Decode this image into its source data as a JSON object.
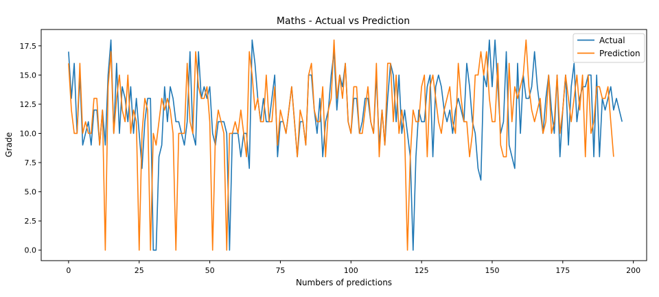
{
  "chart_data": {
    "type": "line",
    "title": "Maths - Actual vs Prediction",
    "xlabel": "Numbers of predictions",
    "ylabel": "Grade",
    "xlim": [
      -9.7,
      204.7
    ],
    "ylim": [
      -0.9,
      18.9
    ],
    "xticks": [
      0,
      25,
      50,
      75,
      100,
      125,
      150,
      175,
      200
    ],
    "yticks": [
      0.0,
      2.5,
      5.0,
      7.5,
      10.0,
      12.5,
      15.0,
      17.5
    ],
    "ytick_labels": [
      "0.0",
      "2.5",
      "5.0",
      "7.5",
      "10.0",
      "12.5",
      "15.0",
      "17.5"
    ],
    "grid": false,
    "legend_position": "upper right",
    "series": [
      {
        "name": "Actual",
        "color": "#1f77b4",
        "values": [
          17,
          13,
          16,
          10,
          15,
          9,
          10,
          11,
          9,
          12,
          12,
          9,
          12,
          9,
          15,
          18,
          10,
          16,
          10,
          14,
          13,
          11,
          14,
          10,
          13,
          10,
          7,
          11,
          13,
          13,
          0,
          0,
          8,
          9,
          14,
          11,
          14,
          13,
          11,
          11,
          10,
          9,
          11,
          17,
          10,
          9,
          17,
          13,
          14,
          13,
          14,
          10,
          9,
          11,
          11,
          11,
          10,
          0,
          10,
          10,
          10,
          8,
          10,
          10,
          7,
          18,
          16,
          13,
          11,
          13,
          11,
          11,
          13,
          15,
          8,
          11,
          11,
          10,
          12,
          14,
          11,
          8,
          11,
          11,
          9,
          15,
          15,
          12,
          10,
          13,
          8,
          11,
          12,
          15,
          17,
          12,
          15,
          14,
          16,
          11,
          10,
          13,
          13,
          10,
          11,
          13,
          13,
          11,
          10,
          15,
          9,
          12,
          9,
          13,
          16,
          15,
          11,
          15,
          10,
          12,
          10,
          8,
          0,
          8,
          12,
          11,
          11,
          14,
          15,
          8,
          14,
          15,
          14,
          12,
          11,
          12,
          10,
          12,
          13,
          12,
          11,
          16,
          14,
          11,
          10,
          7,
          6,
          15,
          14,
          18,
          14,
          18,
          14,
          10,
          11,
          17,
          9,
          8,
          7,
          16,
          10,
          15,
          13,
          13,
          14,
          17,
          14,
          12,
          10,
          13,
          15,
          12,
          10,
          15,
          8,
          12,
          15,
          9,
          14,
          16,
          11,
          13,
          14,
          14,
          15,
          15,
          8,
          15,
          8,
          13,
          12,
          13,
          14,
          12,
          13,
          12,
          11
        ],
        "note_tail_values_estimated": true
      },
      {
        "name": "Prediction",
        "color": "#ff7f0e",
        "values": [
          16,
          12,
          10,
          10,
          16,
          10,
          11,
          10,
          10,
          13,
          13,
          9,
          12,
          0,
          14,
          17,
          10,
          13,
          15,
          12,
          11,
          15,
          10,
          12,
          11,
          0,
          10,
          13,
          12,
          0,
          10,
          9,
          11,
          13,
          12,
          13,
          12,
          10,
          0,
          10,
          10,
          10,
          16,
          11,
          10,
          17,
          14,
          13,
          13,
          14,
          11,
          0,
          10,
          12,
          11,
          10,
          0,
          10,
          10,
          11,
          10,
          12,
          10,
          8,
          17,
          15,
          12,
          13,
          11,
          11,
          15,
          11,
          11,
          14,
          9,
          12,
          11,
          10,
          12,
          14,
          11,
          8,
          12,
          11,
          9,
          15,
          16,
          12,
          11,
          11,
          14,
          8,
          12,
          13,
          18,
          13,
          15,
          13,
          16,
          11,
          10,
          14,
          14,
          10,
          10,
          12,
          14,
          11,
          10,
          16,
          8,
          12,
          9,
          16,
          16,
          11,
          15,
          10,
          12,
          10,
          0,
          8,
          12,
          11,
          11,
          14,
          15,
          8,
          14,
          15,
          13,
          11,
          10,
          12,
          13,
          14,
          11,
          10,
          16,
          13,
          11,
          11,
          8,
          10,
          15,
          15,
          17,
          15,
          17,
          13,
          11,
          11,
          16,
          9,
          8,
          8,
          16,
          11,
          14,
          13,
          14,
          15,
          18,
          14,
          12,
          11,
          12,
          13,
          10,
          11,
          15,
          10,
          11,
          15,
          10,
          12,
          15,
          13,
          11,
          13,
          15,
          12,
          15,
          8,
          15,
          10,
          11,
          14,
          14,
          13,
          13,
          14,
          11,
          8
        ],
        "note_tail_values_estimated": true
      }
    ]
  }
}
